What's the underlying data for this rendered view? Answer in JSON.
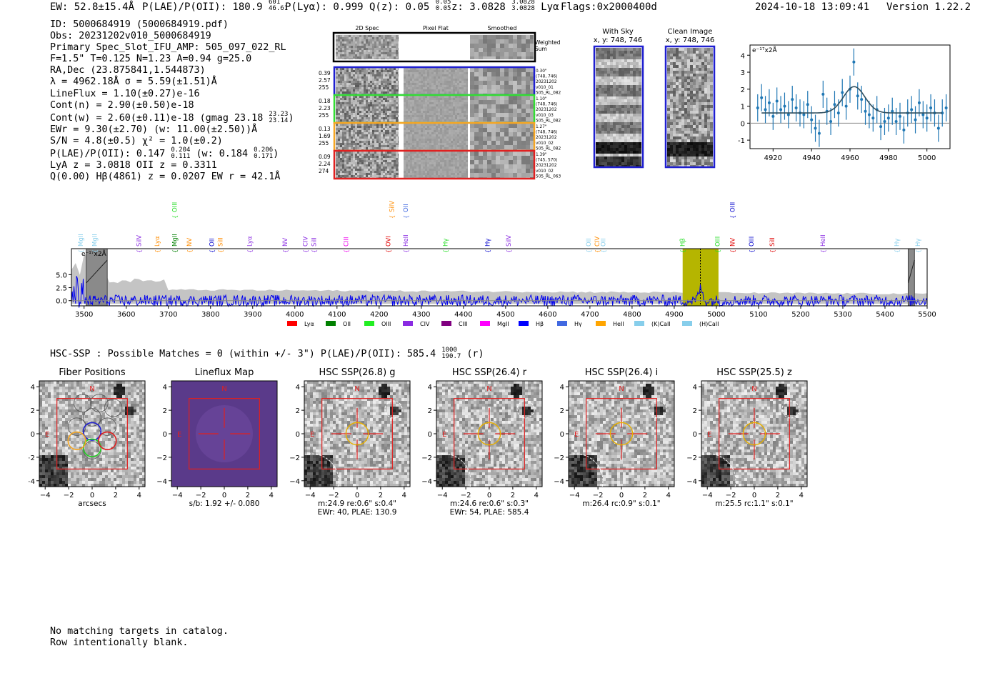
{
  "header": {
    "ew": "EW: 52.8±15.4Å",
    "plae_label": "P(LAE)/P(OII): 180.9",
    "plae_hi": "601",
    "plae_lo": "46.61",
    "plya": "P(Lyα): 0.999",
    "qz_label": "Q(z): 0.05",
    "qz_hi": "0.05",
    "qz_lo": "0.05",
    "z_label": "z: 3.0828",
    "z_hi": "3.0828",
    "z_lo": "3.0828",
    "line": "Lyα",
    "flags": "Flags:0x2000400d",
    "timestamp": "2024-10-18 13:09:41",
    "version": "Version 1.22.2"
  },
  "info": {
    "id": "ID: 5000684919 (5000684919.pdf)",
    "obs": "Obs: 20231202v010_5000684919",
    "primary": "Primary Spec_Slot_IFU_AMP: 505_097_022_RL",
    "params": "F=1.5\"  T=0.125  N=1.23  A=0.94  g=25.0",
    "radec": "RA,Dec (23.875841,1.544873)",
    "lambda": "λ = 4962.18Å   σ = 5.59(±1.51)Å",
    "lineflux": "LineFlux = 1.10(±0.27)e-16",
    "contn": "Cont(n) = 2.90(±0.50)e-18",
    "contw": "Cont(w) = 2.60(±0.11)e-18 (gmag 23.18",
    "gmag_hi": "23.23",
    "gmag_lo": "23.14",
    "ewr": "EWr = 9.30(±2.70) (w: 11.00(±2.50))Å",
    "sn": "S/N = 4.8(±0.5)  χ² = 1.0(±0.2)",
    "plae2_a": "P(LAE)/P(OII): 0.147",
    "plae2_a_hi": "0.204",
    "plae2_a_lo": "0.111",
    "plae2_b": "(w: 0.184",
    "plae2_b_hi": "0.206",
    "plae2_b_lo": "0.171",
    "lyaz": "LyA z = 3.0818   OII z = 0.3311",
    "q": "Q(0.00) Hβ(4861) z = 0.0207   EW r = 42.1Å"
  },
  "fiber_panel": {
    "col_titles": [
      "2D Spec",
      "Pixel Flat",
      "Smoothed"
    ],
    "weighted_label": "Weighted Sum",
    "rows": [
      {
        "nums": [
          "0.39",
          "2.57",
          "255"
        ],
        "meta": [
          "0.30\"",
          "(748, 746)",
          "20231202",
          "v010_01",
          "505_RL_082"
        ],
        "color": "#1f1fd0"
      },
      {
        "nums": [
          "0.18",
          "2.23",
          "255"
        ],
        "meta": [
          "1.10\"",
          "(748, 746)",
          "20231202",
          "v010_03",
          "505_RL_082"
        ],
        "color": "#33dd33"
      },
      {
        "nums": [
          "0.13",
          "1.69",
          "255"
        ],
        "meta": [
          "1.27\"",
          "(748, 746)",
          "20231202",
          "v010_02",
          "505_RL_082"
        ],
        "color": "#f5a623"
      },
      {
        "nums": [
          "0.09",
          "2.24",
          "274"
        ],
        "meta": [
          "1.39\"",
          "(745, 570)",
          "20231202",
          "v010_02",
          "505_RL_063"
        ],
        "color": "#e02020"
      }
    ]
  },
  "sky": {
    "with_sky_title": "With Sky",
    "with_sky_xy": "x, y: 748, 746",
    "clean_title": "Clean Image",
    "clean_xy": "x, y: 748, 746"
  },
  "zoom_chart_data": {
    "type": "scatter",
    "unit_label": "e⁻¹⁷x2Å",
    "xlim": [
      4908,
      5012
    ],
    "ylim": [
      -1.5,
      4.6
    ],
    "xticks": [
      4920,
      4940,
      4960,
      4980,
      5000
    ],
    "yticks": [
      -1,
      0,
      1,
      2,
      3,
      4
    ],
    "x": [
      4912,
      4914,
      4916,
      4918,
      4920,
      4922,
      4924,
      4926,
      4928,
      4930,
      4932,
      4934,
      4936,
      4938,
      4940,
      4942,
      4944,
      4946,
      4948,
      4950,
      4952,
      4954,
      4956,
      4958,
      4960,
      4962,
      4964,
      4966,
      4968,
      4970,
      4972,
      4974,
      4976,
      4978,
      4980,
      4982,
      4984,
      4986,
      4988,
      4990,
      4992,
      4994,
      4996,
      4998,
      5000,
      5002,
      5004,
      5006,
      5008,
      5010
    ],
    "y": [
      0.9,
      1.5,
      0.8,
      1.2,
      0.4,
      1.3,
      0.8,
      1.0,
      0.5,
      1.4,
      0.9,
      0.6,
      0.5,
      1.1,
      0.2,
      -0.3,
      -0.6,
      1.7,
      0.7,
      0.1,
      1.1,
      0.6,
      1.8,
      1.0,
      2.0,
      3.6,
      1.6,
      1.4,
      0.7,
      0.5,
      0.3,
      0.8,
      -0.2,
      0.1,
      0.3,
      0.7,
      0.1,
      0.4,
      -0.4,
      0.6,
      0.8,
      0.2,
      1.2,
      0.5,
      0.3,
      0.9,
      0.6,
      -0.3,
      0.6,
      0.9
    ],
    "err": 0.8,
    "fit": {
      "center": 4962.18,
      "sigma": 5.59,
      "continuum": 0.6,
      "amplitude": 1.55
    }
  },
  "spectrum_chart_data": {
    "type": "line",
    "unit_label": "e⁻¹⁷x2Å",
    "xlim": [
      3470,
      5500
    ],
    "ylim": [
      -1.0,
      10.0
    ],
    "xticks": [
      3500,
      3600,
      3700,
      3800,
      3900,
      4000,
      4100,
      4200,
      4300,
      4400,
      4500,
      4600,
      4700,
      4800,
      4900,
      5000,
      5100,
      5200,
      5300,
      5400,
      5500
    ],
    "yticks": [
      "0.0",
      "2.5",
      "5.0"
    ],
    "highlight": [
      4920,
      5005
    ],
    "line_marker": 4962,
    "masked": [
      [
        3505,
        3555
      ],
      [
        5455,
        5470
      ]
    ],
    "line_labels": [
      {
        "name": "MgII",
        "x": 3497,
        "color": "#87ceeb",
        "row": 2
      },
      {
        "name": "MgII",
        "x": 3530,
        "color": "#87ceeb",
        "row": 2
      },
      {
        "name": "SiIV",
        "x": 3635,
        "color": "#8a2be2",
        "row": 2
      },
      {
        "name": "Lyα",
        "x": 3678,
        "color": "#ff8c00",
        "row": 2
      },
      {
        "name": "MgII",
        "x": 3720,
        "color": "#008000",
        "row": 2
      },
      {
        "name": "OIII",
        "x": 3720,
        "color": "#22dd22",
        "row": 0
      },
      {
        "name": "NV",
        "x": 3755,
        "color": "#ff8c00",
        "row": 2
      },
      {
        "name": "OII",
        "x": 3808,
        "color": "#0000cd",
        "row": 2
      },
      {
        "name": "SiII",
        "x": 3828,
        "color": "#ff8c00",
        "row": 2
      },
      {
        "name": "Lyα",
        "x": 3898,
        "color": "#8a2be2",
        "row": 2
      },
      {
        "name": "NV",
        "x": 3982,
        "color": "#8a2be2",
        "row": 2
      },
      {
        "name": "CIV",
        "x": 4030,
        "color": "#8a2be2",
        "row": 2
      },
      {
        "name": "SiII",
        "x": 4050,
        "color": "#8a2be2",
        "row": 2
      },
      {
        "name": "CIII",
        "x": 4127,
        "color": "#ee00ee",
        "row": 2
      },
      {
        "name": "SiIV",
        "x": 4235,
        "color": "#ff8c00",
        "row": 0
      },
      {
        "name": "OII",
        "x": 4268,
        "color": "#4169e1",
        "row": 0
      },
      {
        "name": "OVI",
        "x": 4227,
        "color": "#e00000",
        "row": 2
      },
      {
        "name": "HeII",
        "x": 4268,
        "color": "#8a2be2",
        "row": 2
      },
      {
        "name": "Hγ",
        "x": 4362,
        "color": "#22dd22",
        "row": 2
      },
      {
        "name": "Hγ",
        "x": 4462,
        "color": "#0000cd",
        "row": 2
      },
      {
        "name": "SiIV",
        "x": 4512,
        "color": "#8a2be2",
        "row": 2
      },
      {
        "name": "OII",
        "x": 4702,
        "color": "#87ceeb",
        "row": 2
      },
      {
        "name": "CIV",
        "x": 4722,
        "color": "#ff8c00",
        "row": 2
      },
      {
        "name": "OII",
        "x": 4737,
        "color": "#87ceeb",
        "row": 2
      },
      {
        "name": "Hβ",
        "x": 4925,
        "color": "#22dd22",
        "row": 2
      },
      {
        "name": "OIII",
        "x": 5008,
        "color": "#22dd22",
        "row": 2
      },
      {
        "name": "NV",
        "x": 5043,
        "color": "#e00000",
        "row": 2
      },
      {
        "name": "OIII",
        "x": 5043,
        "color": "#0000cd",
        "row": 0
      },
      {
        "name": "OIII",
        "x": 5088,
        "color": "#0000cd",
        "row": 2
      },
      {
        "name": "SiII",
        "x": 5137,
        "color": "#e00000",
        "row": 2
      },
      {
        "name": "HeII",
        "x": 5258,
        "color": "#8a2be2",
        "row": 2
      },
      {
        "name": "Hγ",
        "x": 5433,
        "color": "#87ceeb",
        "row": 2
      },
      {
        "name": "Hγ",
        "x": 5483,
        "color": "#87ceeb",
        "row": 2
      }
    ],
    "legend": [
      {
        "name": "Lyα",
        "color": "#ff0000"
      },
      {
        "name": "OII",
        "color": "#008000"
      },
      {
        "name": "OIII",
        "color": "#22ee22"
      },
      {
        "name": "CIV",
        "color": "#8a2be2"
      },
      {
        "name": "CIII",
        "color": "#800080"
      },
      {
        "name": "MgII",
        "color": "#ff00ff"
      },
      {
        "name": "Hβ",
        "color": "#0000ff"
      },
      {
        "name": "Hγ",
        "color": "#4169e1"
      },
      {
        "name": "HeII",
        "color": "#ffa500"
      },
      {
        "name": "(K)CaII",
        "color": "#87ceeb"
      },
      {
        "name": "(H)CaII",
        "color": "#87ceeb"
      }
    ]
  },
  "hsc": {
    "summary": "HSC-SSP : Possible Matches = 0 (within +/- 3\")  P(LAE)/P(OII): 585.4",
    "summary_hi": "1000",
    "summary_lo": "190.7",
    "summary_band": "(r)",
    "ticks": [
      "−4",
      "−2",
      "0",
      "2",
      "4"
    ],
    "n_label": "N",
    "e_label": "E",
    "cutouts": [
      {
        "title": "Fiber Positions",
        "caption": [
          "arcsecs"
        ]
      },
      {
        "title": "Lineflux Map",
        "caption": [
          "s/b: 1.92 +/- 0.080"
        ]
      },
      {
        "title": "HSC SSP(26.8) g",
        "caption": [
          "m:24.9  re:0.6\"  s:0.4\"",
          "EWr: 40, PLAE: 130.9"
        ]
      },
      {
        "title": "HSC SSP(26.4) r",
        "caption": [
          "m:24.6  re:0.6\"  s:0.3\"",
          "EWr: 54, PLAE: 585.4"
        ]
      },
      {
        "title": "HSC SSP(26.4) i",
        "caption": [
          "m:26.4 rc:0.9\"  s:0.1\""
        ]
      },
      {
        "title": "HSC SSP(25.5) z",
        "caption": [
          "m:25.5 rc:1.1\"  s:0.1\""
        ]
      }
    ]
  },
  "footer": {
    "line1": "No matching targets in catalog.",
    "line2": "Row intentionally blank."
  }
}
